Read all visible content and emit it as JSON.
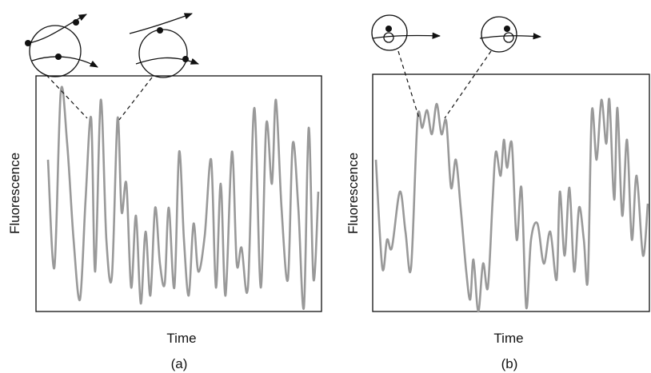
{
  "panels": [
    {
      "y_label": "Fluorescence",
      "x_label": "Time",
      "caption": "(a)"
    },
    {
      "y_label": "Fluorescence",
      "x_label": "Time",
      "caption": "(b)"
    }
  ]
}
